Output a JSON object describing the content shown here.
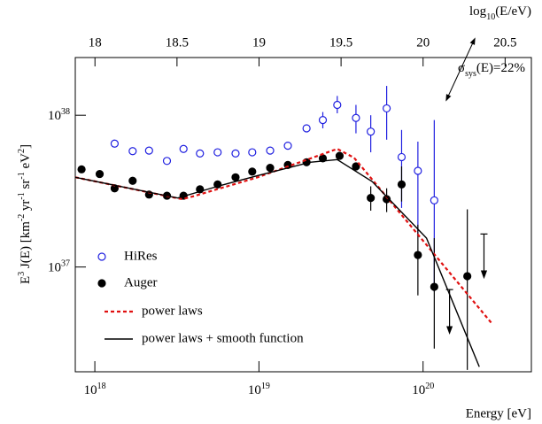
{
  "chart_data": {
    "type": "scatter",
    "log_x": true,
    "log_y": true,
    "x_label": "Energy [eV]",
    "y_label_parts": [
      {
        "text": "E",
        "sup": "3"
      },
      {
        "text": " J(E) [km",
        "sup": "-2"
      },
      {
        "text": " yr",
        "sup": "-1"
      },
      {
        "text": " sr",
        "sup": "-1"
      },
      {
        "text": " eV",
        "sup": "2"
      },
      {
        "text": "]"
      }
    ],
    "top_x_label_parts": [
      {
        "text": "log",
        "sub": "10"
      },
      {
        "text": "(E/eV)"
      }
    ],
    "annotation_parts": [
      {
        "text": "σ",
        "sub": "sys"
      },
      {
        "text": "(E)=22%"
      }
    ],
    "xlim": [
      7.6e+17,
      4.57e+20
    ],
    "xticks": [
      {
        "value": 1e+18,
        "label": "10",
        "sup": "18"
      },
      {
        "value": 1e+19,
        "label": "10",
        "sup": "19"
      },
      {
        "value": 1e+20,
        "label": "10",
        "sup": "20"
      }
    ],
    "top_xlim": [
      17.88,
      20.66
    ],
    "top_xticks": [
      18,
      18.5,
      19,
      19.5,
      20,
      20.5
    ],
    "ylim": [
      2.04e+36,
      2.4e+38
    ],
    "yticks": [
      {
        "value": 1e+37,
        "label": "10",
        "sup": "37"
      },
      {
        "value": 1e+38,
        "label": "10",
        "sup": "38"
      }
    ],
    "series": [
      {
        "name": "HiRes",
        "color": "#2020e0",
        "marker": "open",
        "x": [
          1.32e+18,
          1.7e+18,
          2.14e+18,
          2.75e+18,
          3.47e+18,
          4.37e+18,
          5.6e+18,
          7.2e+18,
          9.1e+18,
          1.17e+19,
          1.5e+19,
          1.95e+19,
          2.45e+19,
          3e+19,
          3.9e+19,
          4.8e+19,
          6e+19,
          7.4e+19,
          9.3e+19,
          1.17e+20
        ],
        "values": [
          6.5e+37,
          5.8e+37,
          5.85e+37,
          5e+37,
          6e+37,
          5.6e+37,
          5.7e+37,
          5.6e+37,
          5.7e+37,
          5.85e+37,
          6.3e+37,
          8.2e+37,
          9.3e+37,
          1.17e+38,
          9.6e+37,
          7.8e+37,
          1.11e+38,
          5.3e+37,
          4.3e+37,
          2.75e+37
        ],
        "y_low": [
          null,
          null,
          null,
          null,
          null,
          null,
          null,
          null,
          null,
          null,
          null,
          null,
          8.2e+37,
          1.03e+38,
          7.6e+37,
          5.7e+37,
          6.9e+37,
          2.45e+37,
          1.6e+37,
          6.9e+36
        ],
        "y_high": [
          null,
          null,
          null,
          null,
          null,
          null,
          null,
          null,
          null,
          null,
          null,
          null,
          1.05e+38,
          1.34e+38,
          1.17e+38,
          1e+38,
          1.56e+38,
          8e+37,
          6.7e+37,
          9.3e+37
        ]
      },
      {
        "name": "Auger",
        "color": "#000000",
        "marker": "filled",
        "x": [
          8.3e+17,
          1.07e+18,
          1.32e+18,
          1.7e+18,
          2.14e+18,
          2.75e+18,
          3.47e+18,
          4.37e+18,
          5.6e+18,
          7.2e+18,
          9.1e+18,
          1.17e+19,
          1.5e+19,
          1.95e+19,
          2.45e+19,
          3.1e+19,
          3.9e+19,
          4.8e+19,
          6e+19,
          7.4e+19,
          9.3e+19,
          1.17e+20,
          1.86e+20
        ],
        "values": [
          4.4e+37,
          4.1e+37,
          3.3e+37,
          3.7e+37,
          3e+37,
          2.95e+37,
          2.95e+37,
          3.25e+37,
          3.5e+37,
          3.9e+37,
          4.25e+37,
          4.5e+37,
          4.7e+37,
          4.9e+37,
          5.2e+37,
          5.4e+37,
          4.6e+37,
          2.85e+37,
          2.8e+37,
          3.5e+37,
          1.2e+37,
          7.4e+36,
          8.7e+36
        ],
        "y_low": [
          null,
          null,
          null,
          null,
          null,
          null,
          null,
          null,
          null,
          null,
          null,
          null,
          null,
          null,
          null,
          null,
          null,
          2.35e+37,
          2.3e+37,
          2.7e+37,
          6.5e+36,
          2.9e+36,
          2.1e+36
        ],
        "y_high": [
          null,
          null,
          null,
          null,
          null,
          null,
          null,
          null,
          null,
          null,
          null,
          null,
          null,
          null,
          null,
          null,
          null,
          3.4e+37,
          3.3e+37,
          4.6e+37,
          1.9e+37,
          1.55e+37,
          2.4e+37
        ],
        "upper_limit_x": [
          1.45e+20,
          2.35e+20
        ],
        "upper_limit_values": [
          7.1e+36,
          1.65e+37
        ]
      },
      {
        "name": "power laws",
        "color": "#e01010",
        "line": "dashed",
        "x": [
          7.6e+17,
          3.4e+18,
          4.1e+18,
          9.8e+18,
          3e+19,
          3.8e+19,
          2.6e+20
        ],
        "values": [
          3.9e+37,
          2.8e+37,
          2.95e+37,
          3.9e+37,
          6e+37,
          5.25e+37,
          4.3e+36
        ]
      },
      {
        "name": "power laws + smooth function",
        "color": "#000000",
        "line": "solid",
        "x": [
          7.6e+17,
          3.2e+18,
          5.6e+18,
          9.8e+18,
          2.05e+19,
          3e+19,
          4.9e+19,
          1.05e+20,
          2.2e+20
        ],
        "values": [
          3.9e+37,
          2.85e+37,
          3.4e+37,
          4e+37,
          4.9e+37,
          5.1e+37,
          3.65e+37,
          1.55e+37,
          2.2e+36
        ]
      }
    ]
  }
}
